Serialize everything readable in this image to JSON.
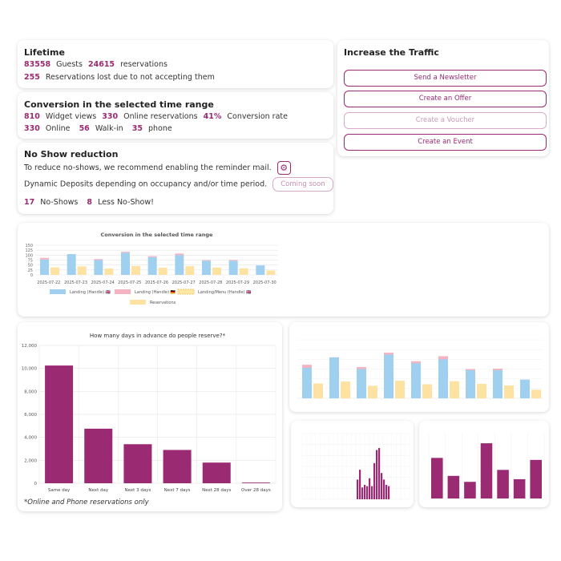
{
  "lifetime": {
    "title": "Lifetime",
    "guests_value": "83558",
    "guests_label": "Guests",
    "reservations_value": "24615",
    "reservations_label": "reservations",
    "lost_value": "255",
    "lost_label": "Reservations lost due to not accepting them"
  },
  "conversion": {
    "title": "Conversion in the selected time range",
    "widget_views_value": "810",
    "widget_views_label": "Widget views",
    "online_res_value": "330",
    "online_res_label": "Online reservations",
    "rate_value": "41%",
    "rate_label": "Conversion rate",
    "online_value": "330",
    "online_label": "Online",
    "walkin_value": "56",
    "walkin_label": "Walk-in",
    "phone_value": "35",
    "phone_label": "phone"
  },
  "noshow": {
    "title": "No Show reduction",
    "reminder_text": "To reduce no-shows, we recommend enabling the reminder mail.",
    "deposit_text": "Dynamic Deposits depending on occupancy and/or time period.",
    "coming_soon_label": "Coming soon",
    "noshows_value": "17",
    "noshows_label": "No-Shows",
    "less_value": "8",
    "less_label": "Less No-Show!"
  },
  "traffic": {
    "title": "Increase the Traffic",
    "buttons": [
      "Send a Newsletter",
      "Create an Offer",
      "Create a Voucher",
      "Create an Event"
    ]
  },
  "colors": {
    "accent": "#9a2a72",
    "landing_blue": "#9fd0f0",
    "landing_pink": "#f5b3c2",
    "menu_yellow": "#fde6a6",
    "reservations_yellow": "#fde2a2"
  },
  "chart_data": [
    {
      "type": "bar",
      "title": "Conversion in the selected time range",
      "categories": [
        "2025-07-22",
        "2025-07-23",
        "2025-07-24",
        "2025-07-25",
        "2025-07-26",
        "2025-07-27",
        "2025-07-28",
        "2025-07-29",
        "2025-07-30"
      ],
      "stacked": true,
      "series": [
        {
          "name": "Landing (Handle) 🇬🇧",
          "stack": "landing",
          "values": [
            78,
            105,
            75,
            112,
            90,
            100,
            72,
            72,
            48
          ]
        },
        {
          "name": "Landing (Handle) 🇩🇪",
          "stack": "landing",
          "values": [
            8,
            0,
            5,
            5,
            5,
            8,
            3,
            4,
            0
          ]
        },
        {
          "name": "Landing/Menu (Handle) 🇬🇧",
          "stack": "reservations",
          "values": [
            0,
            0,
            0,
            0,
            0,
            0,
            0,
            0,
            0
          ]
        },
        {
          "name": "Reservations",
          "stack": "reservations",
          "values": [
            38,
            43,
            32,
            45,
            36,
            44,
            37,
            33,
            22
          ]
        }
      ],
      "ylim": [
        0,
        150
      ],
      "yticks": [
        0,
        25,
        50,
        75,
        100,
        125,
        150
      ],
      "legend": "bottom"
    },
    {
      "type": "bar",
      "title": "How many days in advance do people reserve?*",
      "categories": [
        "Same day",
        "Next day",
        "Next 3 days",
        "Next 7 days",
        "Next 28 days",
        "Over 28 days"
      ],
      "values": [
        10250,
        4750,
        3400,
        2900,
        1800,
        60
      ],
      "ylim": [
        0,
        12000
      ],
      "yticks": [
        0,
        2000,
        4000,
        6000,
        8000,
        10000,
        12000
      ],
      "ytick_labels": [
        "0",
        "2,000",
        "4,000",
        "6,000",
        "8,000",
        "10,000",
        "12,000"
      ],
      "footnote": "*Online and Phone reservations only"
    }
  ]
}
